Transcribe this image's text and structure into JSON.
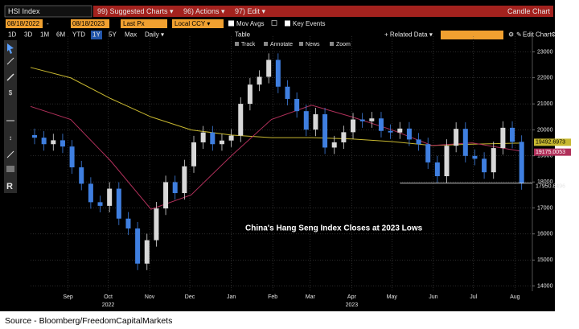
{
  "ui": {
    "ticker": "HSI Index",
    "menu": [
      "99) Suggested Charts ▾",
      "96) Actions ▾",
      "97) Edit ▾"
    ],
    "chart_kind": "Candle Chart",
    "start_date": "08/18/2022",
    "date_sep": "-",
    "end_date": "08/18/2023",
    "price_field": "Last Px",
    "currency": "Local CCY ▾",
    "mov_avgs": "Mov Avgs",
    "key_events": "Key Events",
    "timeframes": [
      "1D",
      "3D",
      "1M",
      "6M",
      "YTD",
      "1Y",
      "5Y",
      "Max",
      "Daily ▾"
    ],
    "table": "Table",
    "related_data": "+ Related Data ▾",
    "edit_chart": "Edit Chart",
    "tools": [
      "Track",
      "Annotate",
      "News",
      "Zoom"
    ],
    "toolbar_letter": "R"
  },
  "chart_data": {
    "type": "candlestick",
    "annotation": "China's Hang Seng Index Closes at 2023 Lows",
    "x": [
      3,
      10,
      17,
      24,
      31,
      38,
      45,
      52,
      59,
      66,
      73,
      80,
      87,
      94,
      101,
      108,
      115,
      122,
      129,
      136,
      143,
      150,
      157,
      164,
      171,
      178,
      185,
      192,
      199,
      206,
      213,
      220,
      227,
      234,
      241,
      248,
      255,
      262,
      269,
      276,
      283,
      290,
      297,
      304,
      311,
      318,
      325,
      332,
      339,
      346,
      353,
      360,
      367
    ],
    "open": [
      19800,
      19700,
      19450,
      19600,
      19360,
      18560,
      17930,
      17220,
      17080,
      17740,
      16590,
      16210,
      14860,
      15760,
      16980,
      17990,
      17570,
      18600,
      19520,
      19900,
      19450,
      19590,
      19780,
      21000,
      21740,
      22040,
      22690,
      21660,
      21190,
      20720,
      20010,
      20600,
      19320,
      19520,
      19910,
      20400,
      20330,
      20440,
      19960,
      19900,
      20050,
      19630,
      19450,
      18750,
      18220,
      19390,
      20040,
      19000,
      18890,
      18370,
      19300,
      20080,
      19540
    ],
    "high": [
      20050,
      19950,
      19850,
      19850,
      19610,
      18810,
      18180,
      17470,
      17990,
      17990,
      16840,
      16460,
      16010,
      17230,
      18240,
      18240,
      18850,
      19770,
      20150,
      20150,
      19840,
      20030,
      21250,
      21990,
      22290,
      22940,
      22940,
      21910,
      21440,
      20970,
      20850,
      20850,
      19770,
      20160,
      20650,
      20650,
      20690,
      20690,
      20210,
      20300,
      20300,
      19880,
      19700,
      19000,
      19640,
      20290,
      20290,
      19250,
      19140,
      19550,
      20330,
      20330,
      19790
    ],
    "low": [
      19450,
      19200,
      19200,
      19110,
      18310,
      17680,
      16970,
      16830,
      16830,
      16340,
      15960,
      14610,
      14610,
      15510,
      16730,
      17320,
      17320,
      18350,
      19270,
      19200,
      19200,
      19340,
      19530,
      20750,
      21490,
      21790,
      21410,
      20940,
      20470,
      19760,
      19760,
      19070,
      19070,
      19270,
      19660,
      20080,
      20080,
      19710,
      19650,
      19650,
      19380,
      19200,
      18500,
      17970,
      17970,
      19140,
      18750,
      18640,
      18120,
      18120,
      19050,
      19290,
      17701
    ],
    "close": [
      19700,
      19450,
      19600,
      19360,
      18560,
      17930,
      17220,
      17080,
      17740,
      16590,
      16210,
      14860,
      15760,
      16980,
      17990,
      17570,
      18600,
      19520,
      19900,
      19450,
      19590,
      19780,
      21000,
      21740,
      22040,
      22690,
      21660,
      21190,
      20720,
      20010,
      20600,
      19320,
      19520,
      19910,
      20400,
      20330,
      20440,
      19960,
      19900,
      20050,
      19630,
      19450,
      18750,
      18220,
      19390,
      20040,
      19000,
      18890,
      18370,
      19300,
      20080,
      19540,
      17950.8496
    ],
    "up_color": "#d8d8d8",
    "down_color": "#3f7fe0",
    "last_price": 17950.8496,
    "series": [
      {
        "color": "#c8b830",
        "x": [
          0,
          30,
          60,
          90,
          120,
          150,
          180,
          210,
          240,
          270,
          300,
          330,
          367
        ],
        "values": [
          22400,
          22000,
          21200,
          20500,
          20000,
          19800,
          19700,
          19700,
          19650,
          19550,
          19400,
          19450,
          19492.6973
        ],
        "last_value": 19492.6973
      },
      {
        "color": "#b0305a",
        "x": [
          0,
          30,
          60,
          90,
          120,
          150,
          180,
          210,
          240,
          270,
          300,
          330,
          367
        ],
        "values": [
          20900,
          20400,
          18800,
          16950,
          17500,
          19000,
          20400,
          20950,
          20500,
          20000,
          19400,
          19500,
          19175.0053
        ],
        "last_value": 19175.0053
      }
    ],
    "xlim": [
      0,
      375
    ],
    "xticks": [
      {
        "value": 28,
        "label": "Sep"
      },
      {
        "value": 58,
        "label": "Oct"
      },
      {
        "value": 89,
        "label": "Nov"
      },
      {
        "value": 119,
        "label": "Dec"
      },
      {
        "value": 150,
        "label": "Jan"
      },
      {
        "value": 181,
        "label": "Feb"
      },
      {
        "value": 209,
        "label": "Mar"
      },
      {
        "value": 240,
        "label": "Apr"
      },
      {
        "value": 270,
        "label": "May"
      },
      {
        "value": 301,
        "label": "Jun"
      },
      {
        "value": 331,
        "label": "Jul"
      },
      {
        "value": 362,
        "label": "Aug"
      }
    ],
    "year_labels": [
      {
        "value": 58,
        "label": "2022"
      },
      {
        "value": 240,
        "label": "2023"
      }
    ],
    "ylim": [
      13800,
      23600
    ],
    "yticks": [
      14000,
      15000,
      16000,
      17000,
      18000,
      19000,
      20000,
      21000,
      22000,
      23000
    ],
    "grid": true
  },
  "source": "Source - Bloomberg/FreedomCapitalMarkets"
}
